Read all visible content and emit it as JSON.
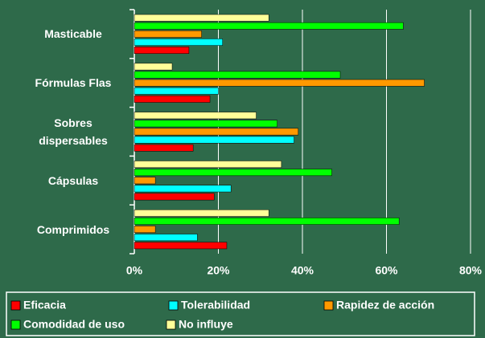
{
  "chart_data": {
    "type": "hbar",
    "categories": [
      "Masticable",
      "Fórmulas Flas",
      "Sobres dispersables",
      "Cápsulas",
      "Comprimidos"
    ],
    "series": [
      {
        "name": "Eficacia",
        "color": "#ff0000",
        "values": [
          13,
          18,
          14,
          19,
          22
        ]
      },
      {
        "name": "Tolerabilidad",
        "color": "#00ffff",
        "values": [
          21,
          20,
          38,
          23,
          15
        ]
      },
      {
        "name": "Rapidez de acción",
        "color": "#ff9900",
        "values": [
          16,
          69,
          39,
          5,
          5
        ]
      },
      {
        "name": "Comodidad de uso",
        "color": "#00ff00",
        "values": [
          64,
          49,
          34,
          47,
          63
        ]
      },
      {
        "name": "No influye",
        "color": "#ffff99",
        "values": [
          32,
          9,
          29,
          35,
          32
        ]
      }
    ],
    "xlim": [
      0,
      80
    ],
    "xticks": [
      {
        "value": 0,
        "label": "0%"
      },
      {
        "value": 20,
        "label": "20%"
      },
      {
        "value": 40,
        "label": "40%"
      },
      {
        "value": 60,
        "label": "60%"
      },
      {
        "value": 80,
        "label": "80%"
      }
    ],
    "grid": true,
    "legend": "bottom"
  }
}
